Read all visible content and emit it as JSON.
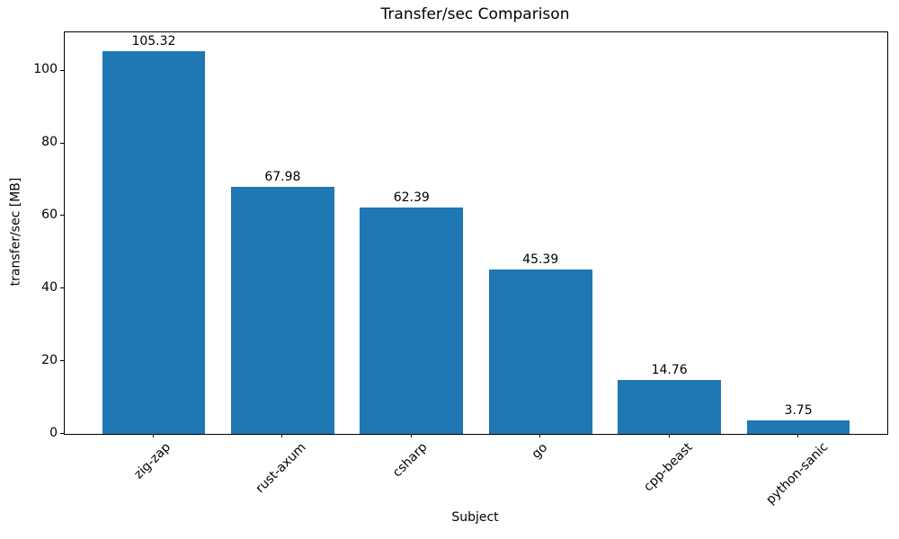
{
  "chart_data": {
    "type": "bar",
    "title": "Transfer/sec Comparison",
    "xlabel": "Subject",
    "ylabel": "transfer/sec [MB]",
    "categories": [
      "zig-zap",
      "rust-axum",
      "csharp",
      "go",
      "cpp-beast",
      "python-sanic"
    ],
    "values": [
      105.32,
      67.98,
      62.39,
      45.39,
      14.76,
      3.75
    ],
    "bar_value_labels": [
      "105.32",
      "67.98",
      "62.39",
      "45.39",
      "14.76",
      "3.75"
    ],
    "yticks": [
      0,
      20,
      40,
      60,
      80,
      100
    ],
    "ylim": [
      0,
      110.59
    ],
    "xtick_rotation_deg": 45,
    "bar_color": "#1f77b4",
    "text_color": "#000000",
    "spine_color": "#000000",
    "background_color": "#ffffff",
    "grid": false,
    "legend": "none"
  }
}
